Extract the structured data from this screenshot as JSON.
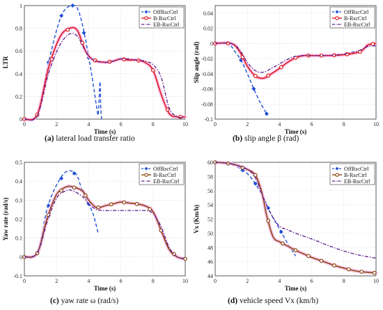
{
  "legend_labels": [
    "OffRscCtrl",
    "B-RscCtrl",
    "EB-RscCtrl"
  ],
  "captions": {
    "a": {
      "tag": "(a)",
      "text": " lateral load transfer ratio"
    },
    "b": {
      "tag": "(b)",
      "text": " slip angle β (rad)"
    },
    "c": {
      "tag": "(c)",
      "text": " yaw rate ω (rad/s)"
    },
    "d": {
      "tag": "(d)",
      "text": " vehicle speed Vx (km/h)"
    }
  },
  "colors": {
    "off": "#1f4fd6",
    "b_a": "#e0161b",
    "b_c": "#8b4513",
    "eb": "#5b1a8a",
    "halo": "#f7b9e6"
  },
  "chart_data": [
    {
      "id": "a",
      "type": "line",
      "xlabel": "Time (s)",
      "ylabel": "LTR",
      "xlim": [
        0,
        10
      ],
      "ylim": [
        0,
        1
      ],
      "xticks": [
        "0",
        "2",
        "4",
        "6",
        "8",
        "10"
      ],
      "xtick_values": [
        0,
        2,
        4,
        6,
        8,
        10
      ],
      "yticks": [
        "0",
        "0.2",
        "0.4",
        "0.6",
        "0.8",
        "1"
      ],
      "ytick_values": [
        0,
        0.2,
        0.4,
        0.6,
        0.8,
        1
      ],
      "legend_position": "top-right",
      "grid": true,
      "series": [
        {
          "name": "OffRscCtrl",
          "style": "off",
          "x": [
            0,
            0.8,
            1.5,
            2.3,
            3.0,
            3.4,
            3.8,
            4.2,
            4.5,
            4.6,
            4.7,
            4.75,
            4.8
          ],
          "y": [
            0,
            0.03,
            0.5,
            0.91,
            1.0,
            0.94,
            0.7,
            0.38,
            0.1,
            0.05,
            0.33,
            0.1,
            0.0
          ],
          "markers_x": [
            0,
            0.8,
            1.5,
            2.3,
            3.0,
            3.7,
            4.0
          ]
        },
        {
          "name": "B-RscCtrl",
          "style": "b",
          "x": [
            0,
            0.8,
            1.5,
            2.2,
            2.8,
            3.3,
            3.8,
            4.3,
            5.0,
            5.5,
            6.0,
            6.5,
            7.0,
            7.5,
            8.0,
            8.5,
            9.0,
            9.5,
            10
          ],
          "y": [
            0,
            0.04,
            0.45,
            0.72,
            0.8,
            0.78,
            0.6,
            0.52,
            0.5,
            0.51,
            0.53,
            0.52,
            0.52,
            0.5,
            0.43,
            0.22,
            0.05,
            0.02,
            0.02
          ],
          "markers_x": [
            0,
            0.8,
            1.7,
            2.7,
            3.6,
            4.4,
            5.3,
            6.2,
            7.1,
            8.0,
            8.9,
            9.7
          ]
        },
        {
          "name": "EB-RscCtrl",
          "style": "eb",
          "x": [
            0,
            0.8,
            1.5,
            2.2,
            2.8,
            3.3,
            3.8,
            4.3,
            5.0,
            5.5,
            6.0,
            6.5,
            7.0,
            7.5,
            8.0,
            8.5,
            9.0,
            9.5,
            10
          ],
          "y": [
            0,
            0.03,
            0.4,
            0.65,
            0.75,
            0.73,
            0.6,
            0.52,
            0.5,
            0.51,
            0.53,
            0.53,
            0.52,
            0.51,
            0.48,
            0.37,
            0.1,
            0.02,
            0.02
          ]
        }
      ]
    },
    {
      "id": "b",
      "type": "line",
      "xlabel": "Time (s)",
      "ylabel": "Slip angle (rad)",
      "xlim": [
        0,
        10
      ],
      "ylim": [
        -0.1,
        0.05
      ],
      "xticks": [
        "0",
        "2",
        "4",
        "6",
        "8",
        "10"
      ],
      "xtick_values": [
        0,
        2,
        4,
        6,
        8,
        10
      ],
      "yticks": [
        "-0.1",
        "-0.08",
        "-0.06",
        "-0.04",
        "-0.02",
        "0",
        "0.02",
        "0.04"
      ],
      "ytick_values": [
        -0.1,
        -0.08,
        -0.06,
        -0.04,
        -0.02,
        0,
        0.02,
        0.04
      ],
      "legend_position": "top-right",
      "grid": true,
      "series": [
        {
          "name": "OffRscCtrl",
          "style": "off",
          "x": [
            0,
            0.8,
            1.2,
            1.6,
            2.0,
            2.4,
            2.8,
            3.2
          ],
          "y": [
            0,
            0,
            -0.01,
            -0.022,
            -0.04,
            -0.06,
            -0.078,
            -0.093
          ],
          "markers_x": [
            0,
            0.8,
            1.6,
            2.4,
            3.2
          ]
        },
        {
          "name": "B-RscCtrl",
          "style": "b",
          "x": [
            0,
            1.0,
            1.5,
            2.0,
            2.5,
            3.0,
            3.5,
            4.0,
            4.5,
            5.0,
            5.5,
            6.0,
            7.0,
            8.0,
            9.0,
            9.5,
            10
          ],
          "y": [
            0,
            0,
            -0.01,
            -0.03,
            -0.043,
            -0.046,
            -0.04,
            -0.033,
            -0.025,
            -0.019,
            -0.016,
            -0.016,
            -0.016,
            -0.015,
            -0.011,
            -0.002,
            0.0
          ],
          "markers_x": [
            0,
            0.8,
            1.7,
            2.5,
            3.3,
            4.1,
            5.0,
            5.8,
            6.6,
            7.4,
            8.2,
            9.0,
            9.8
          ]
        },
        {
          "name": "EB-RscCtrl",
          "style": "eb",
          "x": [
            0,
            1.0,
            1.5,
            2.0,
            2.5,
            3.0,
            3.5,
            4.0,
            4.5,
            5.0,
            5.5,
            6.0,
            7.0,
            8.0,
            9.0,
            9.5,
            10
          ],
          "y": [
            0,
            0,
            -0.008,
            -0.025,
            -0.036,
            -0.038,
            -0.033,
            -0.027,
            -0.021,
            -0.017,
            -0.016,
            -0.016,
            -0.016,
            -0.014,
            -0.009,
            -0.004,
            -0.003
          ]
        }
      ]
    },
    {
      "id": "c",
      "type": "line",
      "xlabel": "Time (s)",
      "ylabel": "Yaw rate (rad/s)",
      "xlim": [
        0,
        10
      ],
      "ylim": [
        -0.1,
        0.5
      ],
      "xticks": [
        "0",
        "2",
        "4",
        "6",
        "8",
        "10"
      ],
      "xtick_values": [
        0,
        2,
        4,
        6,
        8,
        10
      ],
      "yticks": [
        "-0.1",
        "0",
        "0.1",
        "0.2",
        "0.3",
        "0.4",
        "0.5"
      ],
      "ytick_values": [
        -0.1,
        0,
        0.1,
        0.2,
        0.3,
        0.4,
        0.5
      ],
      "legend_position": "top-right",
      "grid": true,
      "series": [
        {
          "name": "OffRscCtrl",
          "style": "off",
          "x": [
            0,
            0.8,
            1.4,
            2.0,
            2.6,
            3.2,
            3.6,
            4.0,
            4.3,
            4.6
          ],
          "y": [
            0,
            0.02,
            0.25,
            0.38,
            0.45,
            0.44,
            0.35,
            0.28,
            0.22,
            0.12
          ],
          "markers_x": [
            0,
            0.8,
            1.5,
            2.3,
            3.1,
            3.6,
            4.0
          ]
        },
        {
          "name": "B-RscCtrl",
          "style": "b",
          "x": [
            0,
            0.8,
            1.4,
            2.0,
            2.6,
            3.0,
            3.6,
            4.0,
            4.5,
            5.0,
            5.5,
            6.0,
            6.5,
            7.0,
            7.5,
            8.0,
            8.5,
            9.0,
            9.5,
            10
          ],
          "y": [
            0,
            0.02,
            0.2,
            0.33,
            0.37,
            0.37,
            0.35,
            0.3,
            0.26,
            0.27,
            0.28,
            0.29,
            0.285,
            0.28,
            0.27,
            0.24,
            0.14,
            0.04,
            0.0,
            -0.01
          ],
          "markers_x": [
            0,
            0.8,
            1.5,
            2.3,
            3.1,
            3.8,
            4.6,
            5.4,
            6.2,
            7.0,
            7.8,
            8.5,
            9.3,
            10
          ]
        },
        {
          "name": "EB-RscCtrl",
          "style": "eb",
          "x": [
            0,
            0.8,
            1.4,
            2.0,
            2.6,
            3.0,
            3.6,
            4.0,
            4.5,
            5.0,
            5.5,
            6.0,
            6.5,
            7.0,
            7.5,
            8.0,
            8.5,
            9.0,
            9.5,
            10
          ],
          "y": [
            0,
            0.02,
            0.18,
            0.31,
            0.35,
            0.35,
            0.32,
            0.28,
            0.25,
            0.245,
            0.245,
            0.245,
            0.245,
            0.245,
            0.245,
            0.23,
            0.16,
            0.05,
            0.0,
            -0.01
          ]
        }
      ]
    },
    {
      "id": "d",
      "type": "line",
      "xlabel": "Time (s)",
      "ylabel": "Vx (Km/h)",
      "xlim": [
        0,
        10
      ],
      "ylim": [
        44,
        60
      ],
      "xticks": [
        "0",
        "2",
        "4",
        "6",
        "8",
        "10"
      ],
      "xtick_values": [
        0,
        2,
        4,
        6,
        8,
        10
      ],
      "yticks": [
        "44",
        "46",
        "48",
        "50",
        "52",
        "54",
        "56",
        "58",
        "60"
      ],
      "ytick_values": [
        44,
        46,
        48,
        50,
        52,
        54,
        56,
        58,
        60
      ],
      "legend_position": "top-right",
      "grid": true,
      "series": [
        {
          "name": "OffRscCtrl",
          "style": "off",
          "x": [
            0,
            0.8,
            1.5,
            2.0,
            2.5,
            3.0,
            3.5,
            4.0,
            4.5,
            5.0
          ],
          "y": [
            60,
            59.8,
            59.2,
            58.4,
            57.0,
            55.0,
            52.6,
            50.6,
            48.6,
            46.8
          ],
          "markers_x": [
            0,
            0.8,
            1.7,
            2.5,
            3.3,
            4.1
          ]
        },
        {
          "name": "B-RscCtrl",
          "style": "b",
          "x": [
            0,
            1.0,
            2.0,
            2.5,
            2.8,
            3.0,
            3.2,
            3.6,
            4.0,
            4.5,
            5.0,
            5.5,
            6.0,
            6.5,
            7.0,
            7.5,
            8.0,
            8.5,
            9.0,
            9.5,
            10
          ],
          "y": [
            60,
            59.8,
            59.0,
            58.2,
            56.5,
            54.8,
            52.5,
            49.5,
            48.8,
            48.2,
            47.6,
            47.1,
            46.6,
            46.2,
            45.8,
            45.4,
            45.1,
            44.8,
            44.6,
            44.5,
            44.4
          ],
          "markers_x": [
            0,
            0.8,
            1.7,
            2.5,
            3.3,
            4.2,
            5.0,
            5.8,
            6.6,
            7.4,
            8.3,
            9.1,
            9.9
          ]
        },
        {
          "name": "EB-RscCtrl",
          "style": "eb",
          "x": [
            0,
            1.0,
            2.0,
            2.5,
            3.0,
            3.5,
            4.0,
            4.5,
            5.0,
            6.0,
            7.0,
            8.0,
            9.0,
            10
          ],
          "y": [
            60,
            59.8,
            59.0,
            57.8,
            55.0,
            52.6,
            51.0,
            50.5,
            50.0,
            49.2,
            48.3,
            47.5,
            46.9,
            46.5
          ]
        }
      ]
    }
  ]
}
